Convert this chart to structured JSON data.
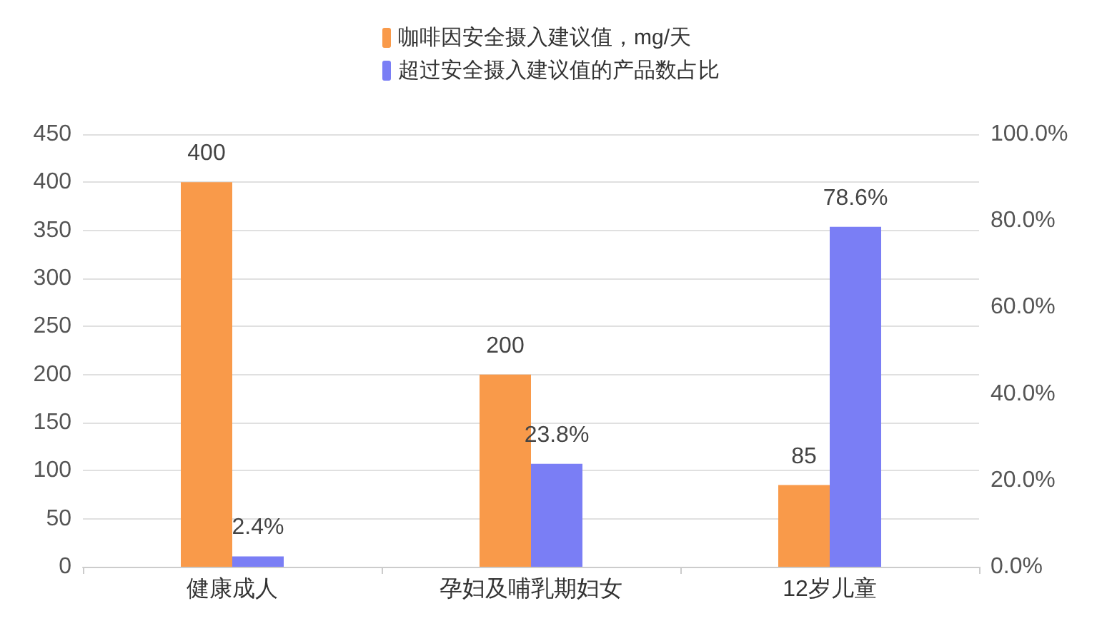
{
  "chart_data": {
    "type": "bar",
    "categories": [
      "健康成人",
      "孕妇及哺乳期妇女",
      "12岁儿童"
    ],
    "series": [
      {
        "name": "咖啡因安全摄入建议值，mg/天",
        "color": "#f99a4a",
        "values": [
          400,
          200,
          85
        ],
        "value_labels": [
          "400",
          "200",
          "85"
        ]
      },
      {
        "name": "超过安全摄入建议值的产品数占比",
        "color": "#7a7ef5",
        "values": [
          2.4,
          23.8,
          78.6
        ],
        "value_labels": [
          "2.4%",
          "23.8%",
          "78.6%"
        ],
        "axis": "y2"
      }
    ],
    "ylim": [
      0,
      450
    ],
    "yticks": [
      0,
      50,
      100,
      150,
      200,
      250,
      300,
      350,
      400,
      450
    ],
    "y2lim": [
      0,
      100
    ],
    "y2ticks": [
      {
        "value": 0,
        "label": "0.0%"
      },
      {
        "value": 20,
        "label": "20.0%"
      },
      {
        "value": 40,
        "label": "40.0%"
      },
      {
        "value": 60,
        "label": "60.0%"
      },
      {
        "value": 80,
        "label": "80.0%"
      },
      {
        "value": 100,
        "label": "100.0%"
      }
    ],
    "grid": "y",
    "legend": "top"
  }
}
